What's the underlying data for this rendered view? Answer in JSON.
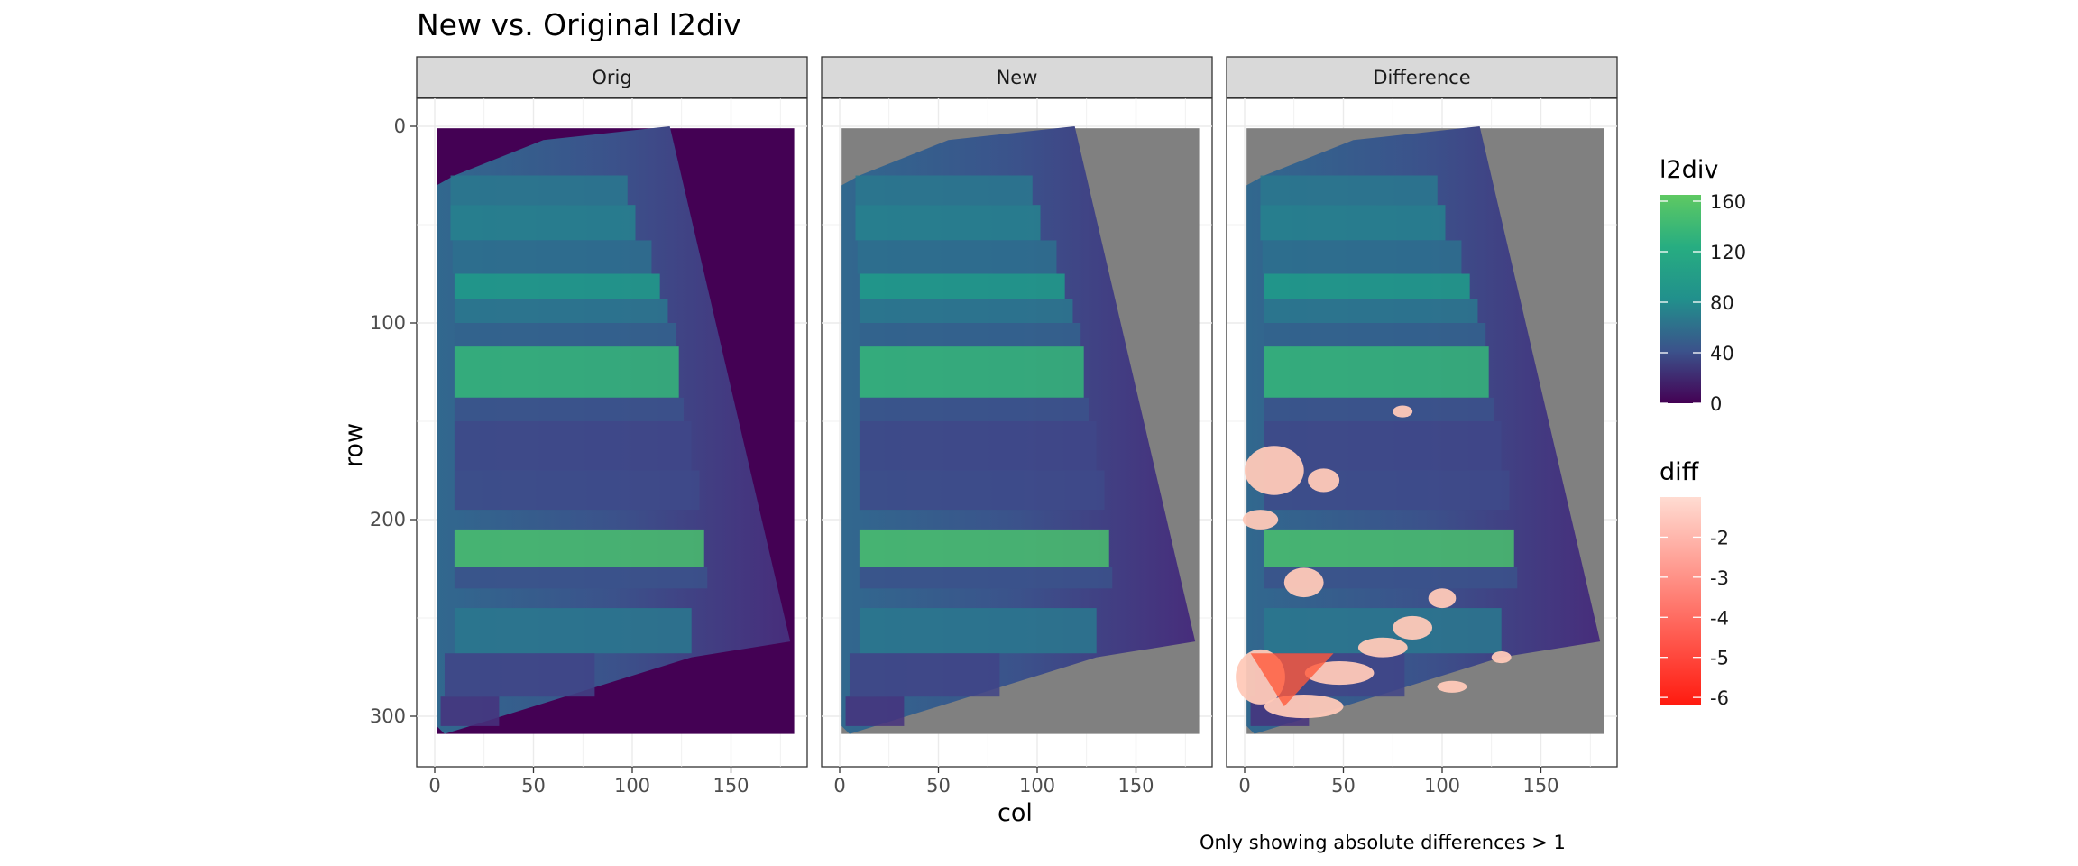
{
  "title": "New vs. Original l2div",
  "caption": "Only showing absolute differences > 1",
  "colors": {
    "viridis_low": "#440154",
    "viridis_mid": "#21908c",
    "viridis_high": "#5ec962",
    "na_gray": "#808080",
    "diff_high": "#ffdcd2",
    "diff_low": "#ff1a0f",
    "strip_fill": "#d9d9d9"
  },
  "chart_data": {
    "type": "heatmap",
    "title": "New vs. Original l2div",
    "xlabel": "col",
    "ylabel": "row",
    "xlim": [
      0,
      182
    ],
    "ylim": [
      310,
      0
    ],
    "x_ticks": [
      0,
      50,
      100,
      150
    ],
    "y_ticks": [
      0,
      100,
      200,
      300
    ],
    "facets": [
      "Orig",
      "New",
      "Difference"
    ],
    "fill_scales": [
      {
        "name": "l2div",
        "palette": "viridis",
        "limits": [
          0,
          165
        ],
        "breaks": [
          0,
          40,
          80,
          120,
          160
        ]
      },
      {
        "name": "diff",
        "palette": "reds",
        "limits": [
          -6.2,
          -1
        ],
        "breaks": [
          -2,
          -3,
          -4,
          -5,
          -6
        ]
      }
    ],
    "caption": "Only showing absolute differences > 1"
  }
}
